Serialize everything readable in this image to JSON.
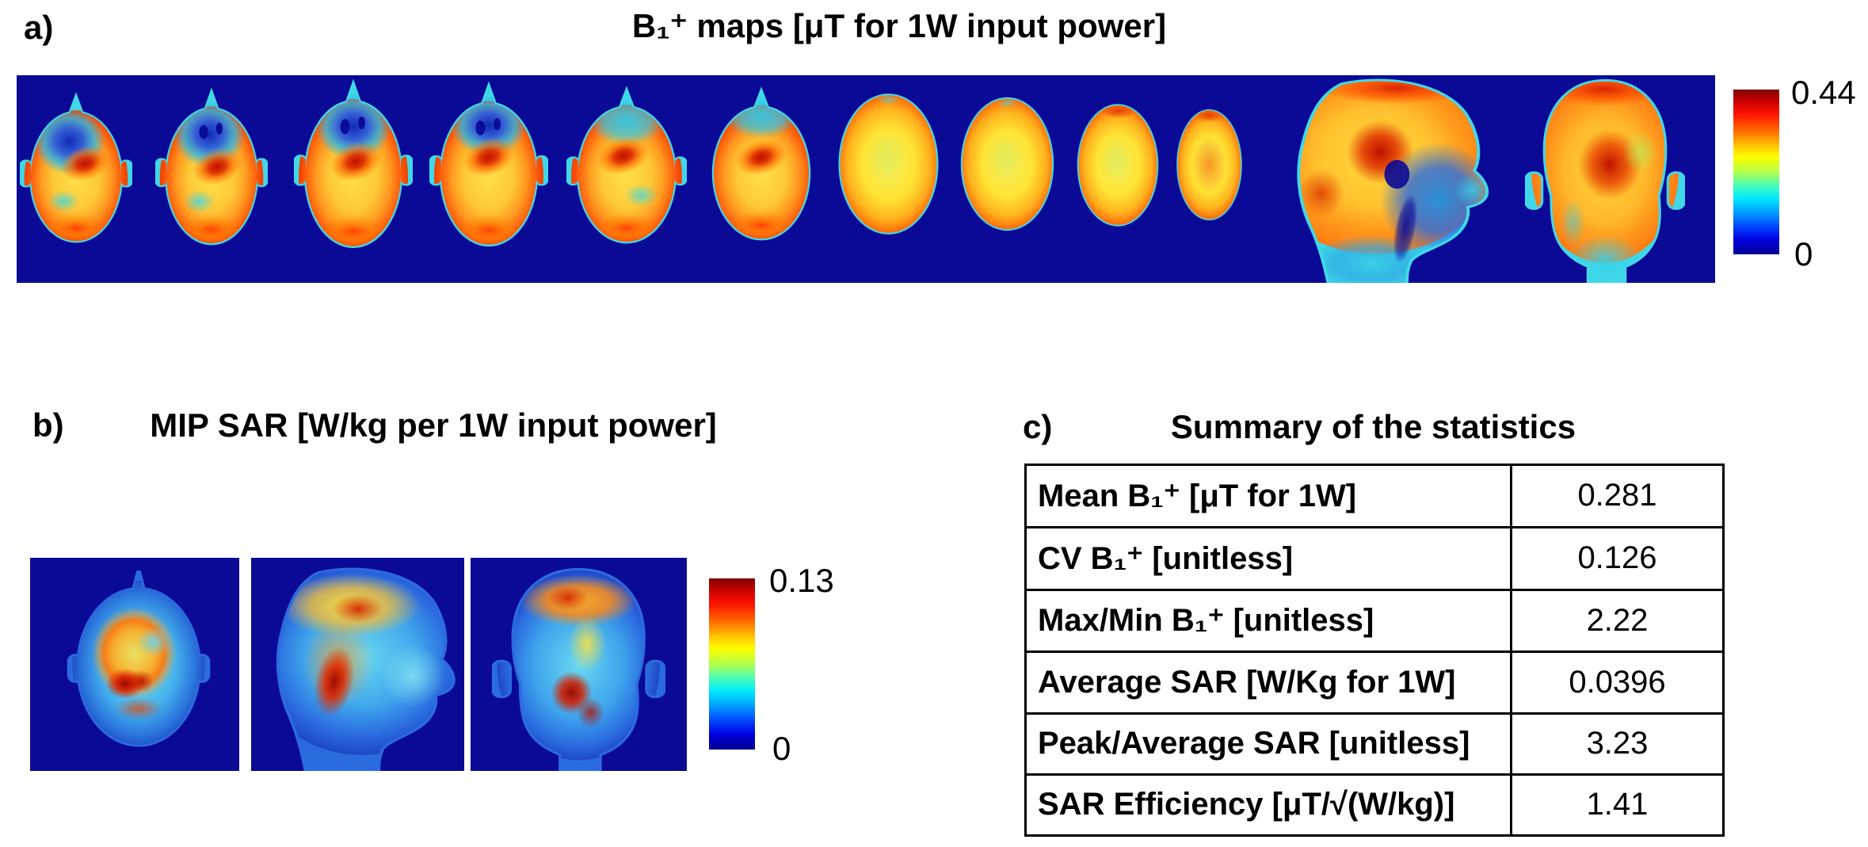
{
  "figure": {
    "colors": {
      "navy_background": "#0a0a96",
      "jet_max": "#7f0000",
      "jet_min": "#00008f"
    }
  },
  "panel_a": {
    "label": "a)",
    "title": "B₁⁺ maps [μT for 1W input power]",
    "colorbar": {
      "max": "0.44",
      "min": "0"
    },
    "maps": [
      "axial-slice-1",
      "axial-slice-2",
      "axial-slice-3",
      "axial-slice-4",
      "axial-slice-5",
      "axial-slice-6",
      "axial-slice-7",
      "axial-slice-8",
      "axial-slice-9",
      "axial-slice-10",
      "sagittal-view",
      "coronal-view"
    ]
  },
  "panel_b": {
    "label": "b)",
    "title": "MIP SAR [W/kg per 1W input power]",
    "colorbar": {
      "max": "0.13",
      "min": "0"
    },
    "maps": [
      "axial-mip",
      "sagittal-mip",
      "coronal-mip"
    ]
  },
  "panel_c": {
    "label": "c)",
    "title": "Summary of the statistics",
    "table": {
      "rows": [
        {
          "label": "Mean B₁⁺ [μT for 1W]",
          "value": "0.281"
        },
        {
          "label": "CV B₁⁺ [unitless]",
          "value": "0.126"
        },
        {
          "label": "Max/Min B₁⁺ [unitless]",
          "value": "2.22"
        },
        {
          "label": "Average SAR [W/Kg for 1W]",
          "value": "0.0396"
        },
        {
          "label": "Peak/Average SAR [unitless]",
          "value": "3.23"
        },
        {
          "label": "SAR Efficiency [μT/√(W/kg)]",
          "value": "1.41"
        }
      ]
    }
  }
}
